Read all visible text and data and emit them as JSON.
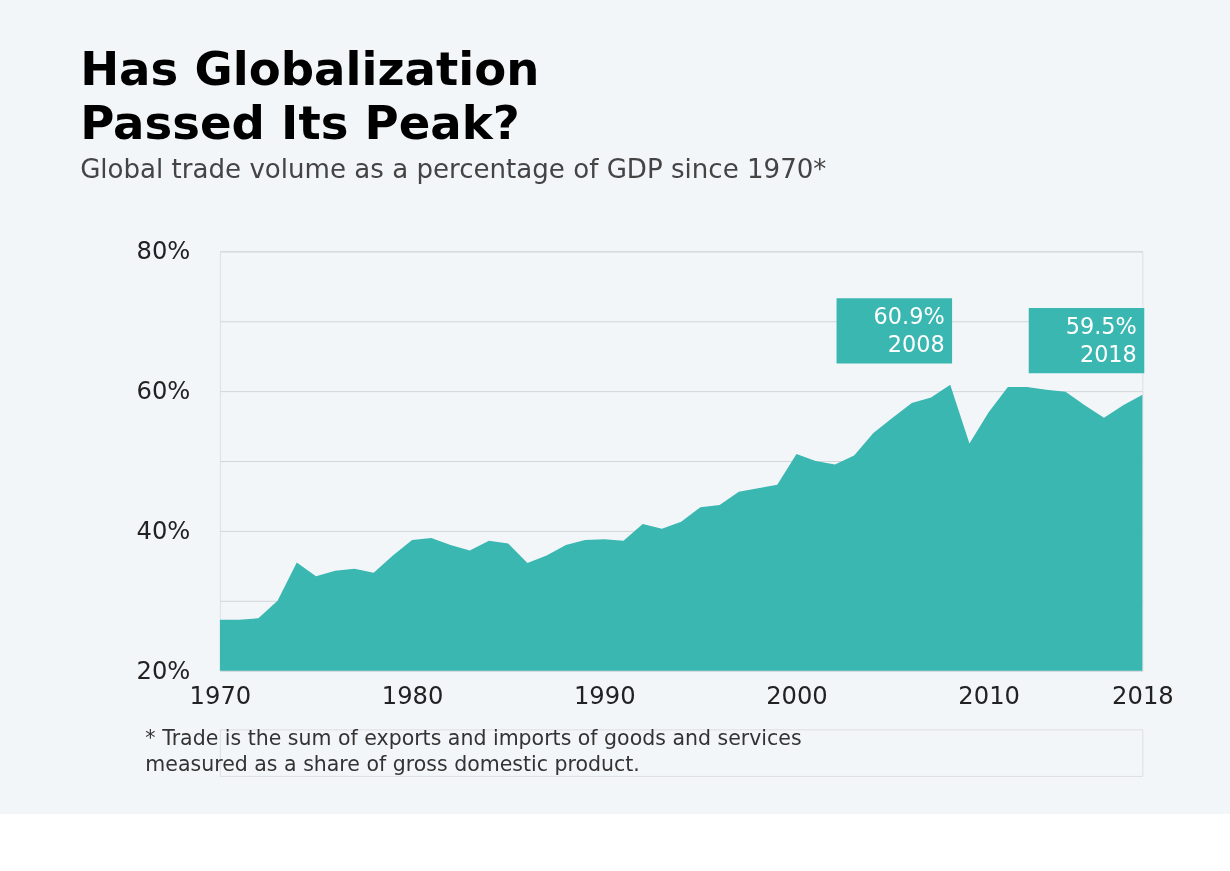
{
  "chart_data": {
    "type": "area",
    "title": "Has Globalization\nPassed Its Peak?",
    "subtitle": "Global trade volume as a percentage of GDP since 1970*",
    "x": [
      1970,
      1971,
      1972,
      1973,
      1974,
      1975,
      1976,
      1977,
      1978,
      1979,
      1980,
      1981,
      1982,
      1983,
      1984,
      1985,
      1986,
      1987,
      1988,
      1989,
      1990,
      1991,
      1992,
      1993,
      1994,
      1995,
      1996,
      1997,
      1998,
      1999,
      2000,
      2001,
      2002,
      2003,
      2004,
      2005,
      2006,
      2007,
      2008,
      2009,
      2010,
      2011,
      2012,
      2013,
      2014,
      2015,
      2016,
      2017,
      2018
    ],
    "series": [
      {
        "color": "#3bb7b2",
        "values": [
          27.3,
          27.3,
          27.5,
          30.0,
          35.5,
          33.5,
          34.3,
          34.6,
          34.0,
          36.5,
          38.7,
          39.0,
          38.0,
          37.2,
          38.6,
          38.2,
          35.4,
          36.5,
          38.0,
          38.7,
          38.8,
          38.6,
          41.0,
          40.3,
          41.3,
          43.4,
          43.7,
          45.6,
          46.1,
          46.6,
          51.0,
          50.0,
          49.5,
          50.8,
          54.0,
          56.2,
          58.3,
          59.1,
          60.9,
          52.5,
          57.0,
          60.6,
          60.6,
          60.2,
          59.9,
          58.0,
          56.2,
          58.0,
          59.5
        ]
      }
    ],
    "xlim": [
      1970,
      2018
    ],
    "xticks": [
      1970,
      1980,
      1990,
      2000,
      2010,
      2018
    ],
    "ylim": [
      20,
      80
    ],
    "yticks": [
      {
        "value": 20,
        "label": "20%"
      },
      {
        "value": 30,
        "label": null
      },
      {
        "value": 40,
        "label": "40%"
      },
      {
        "value": 50,
        "label": null
      },
      {
        "value": 60,
        "label": "60%"
      },
      {
        "value": 70,
        "label": null
      },
      {
        "value": 80,
        "label": "80%"
      }
    ],
    "grid": "y",
    "annotations": [
      {
        "text": "60.9%\n2008",
        "x": 2008,
        "y": 60.9
      },
      {
        "text": "59.5%\n2018",
        "x": 2018,
        "y": 59.5
      },
      "* Trade is the sum of exports and imports of goods and services\n  measured as a share of gross domestic product."
    ]
  }
}
